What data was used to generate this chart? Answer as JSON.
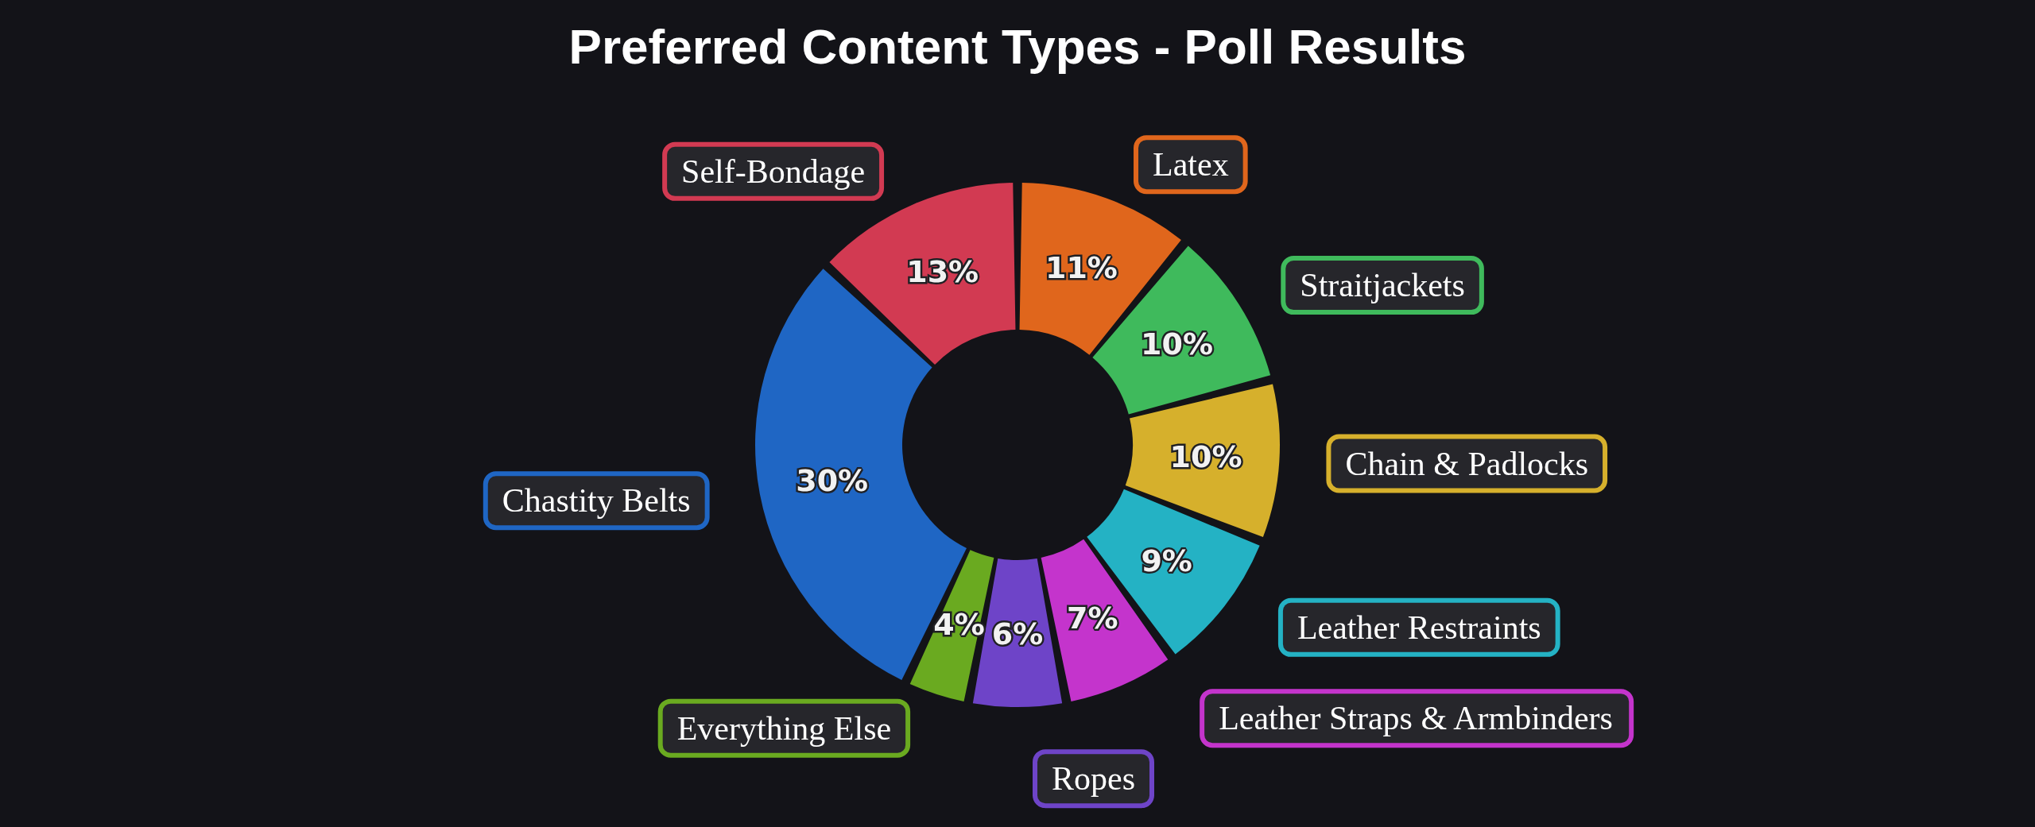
{
  "chart_data": {
    "type": "donut",
    "title": "Preferred Content Types - Poll Results",
    "categories": [
      "Latex",
      "Straitjackets",
      "Chain & Padlocks",
      "Leather Restraints",
      "Leather Straps & Armbinders",
      "Ropes",
      "Everything Else",
      "Chastity Belts",
      "Self-Bondage"
    ],
    "values": [
      11,
      10,
      10,
      9,
      7,
      6,
      4,
      30,
      13
    ],
    "value_labels": [
      "11%",
      "10%",
      "10%",
      "9%",
      "7%",
      "6%",
      "4%",
      "30%",
      "13%"
    ],
    "colors": [
      "#e0661c",
      "#3fba5c",
      "#d6b02c",
      "#24b2c4",
      "#c434cc",
      "#6e44c8",
      "#6aaa20",
      "#1f66c4",
      "#d23a52"
    ]
  }
}
